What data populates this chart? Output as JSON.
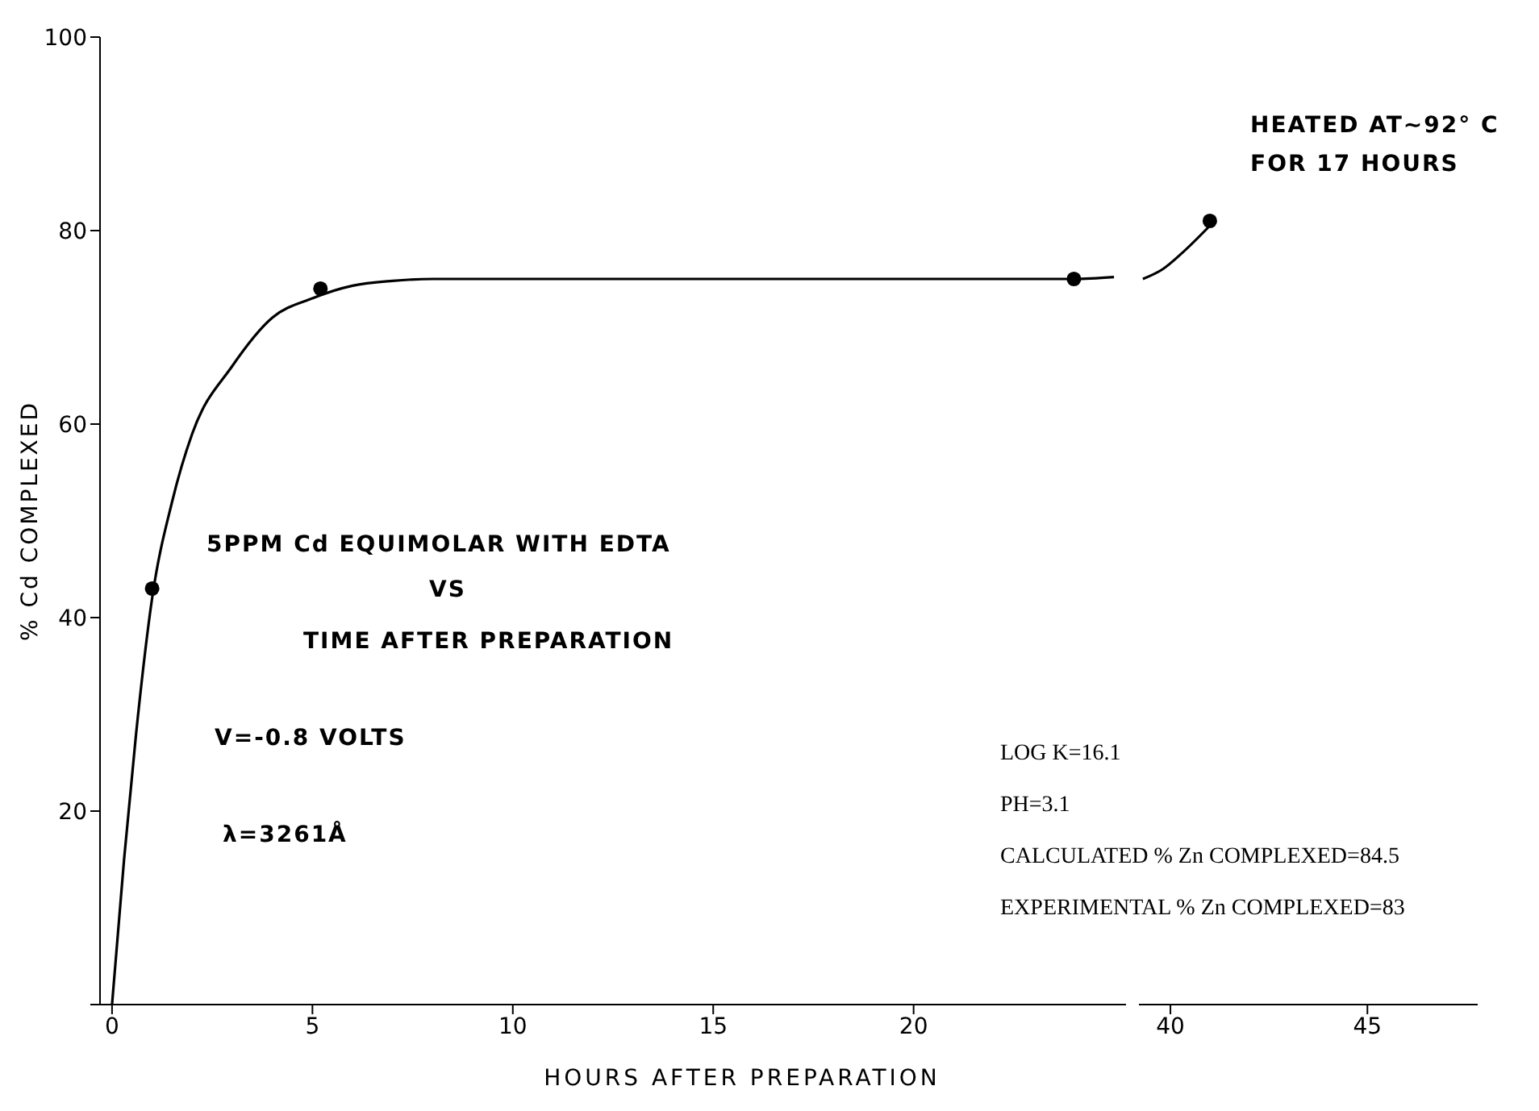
{
  "chart_data": [
    {
      "type": "line",
      "xlabel": "HOURS AFTER PREPARATION",
      "ylabel": "% Cd COMPLEXED",
      "xlim": [
        -0.3,
        25.3
      ],
      "xticks": [
        0,
        5,
        10,
        15,
        20
      ],
      "ylim": [
        0,
        100
      ],
      "yticks": [
        {
          "value": 0,
          "label": null
        },
        20,
        40,
        60,
        80,
        100
      ],
      "grid": false,
      "legend": false,
      "annotations": [
        "5PPM Cd EQUIMOLAR WITH EDTA",
        "VS",
        "TIME AFTER PREPARATION",
        "V=-0.8 VOLTS",
        "λ=3261Å"
      ],
      "series": [
        {
          "marker": "none",
          "line_style": "solid",
          "color": "#000000",
          "x": [
            0,
            0.3,
            0.6,
            1,
            1.5,
            2,
            3,
            4,
            5,
            6,
            7,
            8,
            10,
            15,
            20,
            24,
            25
          ],
          "values": [
            0,
            15,
            28,
            42,
            52,
            59,
            66,
            71,
            73,
            74.3,
            74.8,
            75,
            75,
            75,
            75,
            75,
            75.2
          ]
        },
        {
          "type": "scatter",
          "marker": "circle",
          "color": "#000000",
          "x": [
            1,
            5.2,
            24
          ],
          "values": [
            43,
            74,
            75
          ]
        }
      ]
    },
    {
      "type": "line",
      "xlim": [
        39.2,
        47.8
      ],
      "xticks": [
        40,
        45
      ],
      "ylim": [
        0,
        100
      ],
      "tick_labels": "x",
      "grid": false,
      "legend": false,
      "annotations": [
        "HEATED AT~92° C",
        "FOR 17 HOURS",
        "LOG K=16.1",
        "PH=3.1",
        "CALCULATED % Zn COMPLEXED=84.5",
        "EXPERIMENTAL % Zn COMPLEXED=83"
      ],
      "series": [
        {
          "marker": "none",
          "line_style": "solid",
          "color": "#000000",
          "x": [
            39.3,
            39.8,
            40.3,
            41
          ],
          "values": [
            75,
            76,
            77.7,
            80.5
          ]
        },
        {
          "type": "scatter",
          "marker": "circle",
          "color": "#000000",
          "x": [
            41
          ],
          "values": [
            81
          ]
        }
      ]
    }
  ]
}
